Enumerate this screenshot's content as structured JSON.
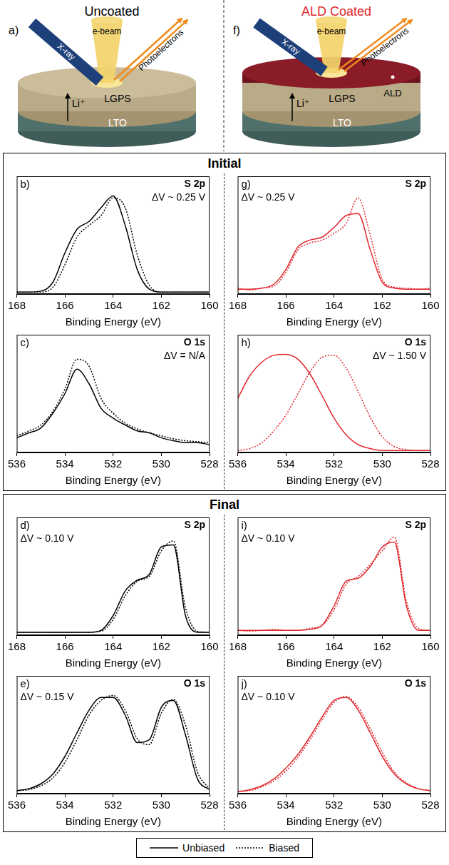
{
  "header": {
    "diagrams": [
      {
        "panel": "a)",
        "title": "Uncoated",
        "beam_labels": [
          "X-ray",
          "e-beam",
          "Photoelectrons"
        ],
        "layers": [
          "LGPS",
          "LTO"
        ],
        "ion": "Li⁺"
      },
      {
        "panel": "f)",
        "title": "ALD Coated",
        "beam_labels": [
          "X-ray",
          "e-beam",
          "Photoelectrons"
        ],
        "coating": "ALD",
        "layers": [
          "LGPS",
          "LTO"
        ],
        "ion": "Li⁺"
      }
    ]
  },
  "sections": [
    "Initial",
    "Final"
  ],
  "chart_data": [
    {
      "type": "line",
      "panel": "b)",
      "annotations": [
        "S 2p",
        "ΔV ~ 0.25 V"
      ],
      "x_label": "Binding Energy (eV)",
      "x": [
        168,
        167.5,
        167,
        166.5,
        166,
        165.5,
        165,
        164.5,
        164,
        163.5,
        163,
        162.5,
        162,
        161.5,
        161,
        160.5,
        160
      ],
      "xlim": [
        168,
        160
      ],
      "xticks": [
        168,
        166,
        164,
        162,
        160
      ],
      "ylim": [
        0,
        1.2
      ],
      "grid": false,
      "tick_labels": "x",
      "series": [
        {
          "name": "Unbiased",
          "color": "#000000",
          "line_style": "solid",
          "values": [
            0.02,
            0.02,
            0.03,
            0.12,
            0.42,
            0.66,
            0.74,
            0.88,
            1.0,
            0.7,
            0.25,
            0.05,
            0.02,
            0.02,
            0.02,
            0.02,
            0.02
          ]
        },
        {
          "name": "Biased",
          "color": "#000000",
          "line_style": "dotted",
          "values": [
            0.02,
            0.02,
            0.02,
            0.07,
            0.3,
            0.58,
            0.7,
            0.8,
            0.98,
            0.88,
            0.4,
            0.09,
            0.02,
            0.02,
            0.02,
            0.02,
            0.02
          ]
        }
      ]
    },
    {
      "type": "line",
      "panel": "c)",
      "annotations": [
        "O 1s",
        "ΔV = N/A"
      ],
      "x_label": "Binding Energy (eV)",
      "x": [
        536,
        535.5,
        535,
        534.5,
        534,
        533.5,
        533,
        532.5,
        532,
        531.5,
        531,
        530.5,
        530,
        529.5,
        529,
        528.5,
        528
      ],
      "xlim": [
        536,
        528
      ],
      "xticks": [
        536,
        534,
        532,
        530,
        528
      ],
      "ylim": [
        0,
        1.2
      ],
      "grid": false,
      "tick_labels": "x",
      "series": [
        {
          "name": "Unbiased",
          "color": "#000000",
          "line_style": "solid",
          "values": [
            0.15,
            0.2,
            0.25,
            0.4,
            0.6,
            0.85,
            0.7,
            0.45,
            0.35,
            0.28,
            0.22,
            0.2,
            0.15,
            0.12,
            0.1,
            0.1,
            0.08
          ]
        },
        {
          "name": "Biased",
          "color": "#000000",
          "line_style": "dotted",
          "values": [
            0.17,
            0.22,
            0.28,
            0.42,
            0.65,
            0.95,
            0.88,
            0.55,
            0.4,
            0.3,
            0.24,
            0.2,
            0.17,
            0.14,
            0.12,
            0.11,
            0.1
          ]
        }
      ]
    },
    {
      "type": "line",
      "panel": "d)",
      "annotations": [
        "S 2p",
        "ΔV ~ 0.10 V"
      ],
      "x_label": "Binding Energy (eV)",
      "x": [
        168,
        167.5,
        167,
        166.5,
        166,
        165.5,
        165,
        164.5,
        164,
        163.5,
        163,
        162.5,
        162,
        161.5,
        161,
        160.5,
        160
      ],
      "xlim": [
        168,
        160
      ],
      "xticks": [
        168,
        166,
        164,
        162,
        160
      ],
      "ylim": [
        0,
        1.2
      ],
      "grid": false,
      "tick_labels": "x",
      "series": [
        {
          "name": "Unbiased",
          "color": "#000000",
          "line_style": "solid",
          "values": [
            0.03,
            0.03,
            0.03,
            0.03,
            0.03,
            0.03,
            0.03,
            0.05,
            0.2,
            0.45,
            0.56,
            0.62,
            0.9,
            0.92,
            0.2,
            0.03,
            0.03
          ]
        },
        {
          "name": "Biased",
          "color": "#000000",
          "line_style": "dotted",
          "values": [
            0.03,
            0.03,
            0.03,
            0.03,
            0.03,
            0.03,
            0.03,
            0.04,
            0.16,
            0.4,
            0.55,
            0.6,
            0.86,
            0.96,
            0.28,
            0.04,
            0.03
          ]
        }
      ]
    },
    {
      "type": "line",
      "panel": "e)",
      "annotations": [
        "O 1s",
        "ΔV ~ 0.15 V"
      ],
      "x_label": "Binding Energy (eV)",
      "x": [
        536,
        535.5,
        535,
        534.5,
        534,
        533.5,
        533,
        532.5,
        532,
        531.5,
        531,
        530.5,
        530,
        529.5,
        529,
        528.5,
        528
      ],
      "xlim": [
        536,
        528
      ],
      "xticks": [
        536,
        534,
        532,
        530,
        528
      ],
      "ylim": [
        0,
        1.2
      ],
      "grid": false,
      "tick_labels": "x",
      "series": [
        {
          "name": "Unbiased",
          "color": "#000000",
          "line_style": "solid",
          "values": [
            0.03,
            0.05,
            0.1,
            0.2,
            0.38,
            0.62,
            0.85,
            0.98,
            0.98,
            0.8,
            0.52,
            0.55,
            0.88,
            0.95,
            0.6,
            0.15,
            0.04
          ]
        },
        {
          "name": "Biased",
          "color": "#000000",
          "line_style": "dotted",
          "values": [
            0.03,
            0.04,
            0.08,
            0.16,
            0.32,
            0.55,
            0.8,
            0.95,
            1.0,
            0.85,
            0.56,
            0.5,
            0.82,
            0.96,
            0.7,
            0.22,
            0.05
          ]
        }
      ]
    },
    {
      "type": "line",
      "panel": "g)",
      "annotations": [
        "S 2p",
        "ΔV ~ 0.25 V"
      ],
      "x_label": "Binding Energy (eV)",
      "x": [
        168,
        167.5,
        167,
        166.5,
        166,
        165.5,
        165,
        164.5,
        164,
        163.5,
        163,
        162.5,
        162,
        161.5,
        161,
        160.5,
        160
      ],
      "xlim": [
        168,
        160
      ],
      "xticks": [
        168,
        166,
        164,
        162,
        160
      ],
      "ylim": [
        0,
        1.2
      ],
      "grid": false,
      "tick_labels": "x",
      "series": [
        {
          "name": "Unbiased",
          "color": "#e0282e",
          "line_style": "solid",
          "values": [
            0.05,
            0.05,
            0.06,
            0.1,
            0.25,
            0.48,
            0.55,
            0.58,
            0.68,
            0.8,
            0.82,
            0.45,
            0.12,
            0.06,
            0.05,
            0.05,
            0.05
          ]
        },
        {
          "name": "Biased",
          "color": "#e0282e",
          "line_style": "dotted",
          "values": [
            0.06,
            0.04,
            0.06,
            0.08,
            0.22,
            0.45,
            0.52,
            0.55,
            0.62,
            0.72,
            0.98,
            0.6,
            0.15,
            0.07,
            0.06,
            0.05,
            0.06
          ]
        }
      ]
    },
    {
      "type": "line",
      "panel": "h)",
      "annotations": [
        "O 1s",
        "ΔV ~ 1.50 V"
      ],
      "x_label": "Binding Energy (eV)",
      "x": [
        536,
        535.5,
        535,
        534.5,
        534,
        533.5,
        533,
        532.5,
        532,
        531.5,
        531,
        530.5,
        530,
        529.5,
        529,
        528.5,
        528
      ],
      "xlim": [
        536,
        528
      ],
      "xticks": [
        536,
        534,
        532,
        530,
        528
      ],
      "ylim": [
        0,
        1.2
      ],
      "grid": false,
      "tick_labels": "x",
      "series": [
        {
          "name": "Unbiased",
          "color": "#e0282e",
          "line_style": "solid",
          "values": [
            0.55,
            0.78,
            0.92,
            0.99,
            1.0,
            0.95,
            0.8,
            0.58,
            0.35,
            0.18,
            0.08,
            0.04,
            0.02,
            0.02,
            0.02,
            0.02,
            0.02
          ]
        },
        {
          "name": "Biased",
          "color": "#e0282e",
          "line_style": "dotted",
          "values": [
            0.02,
            0.04,
            0.1,
            0.22,
            0.38,
            0.6,
            0.82,
            0.97,
            0.99,
            0.86,
            0.62,
            0.36,
            0.16,
            0.06,
            0.03,
            0.02,
            0.02
          ]
        }
      ]
    },
    {
      "type": "line",
      "panel": "i)",
      "annotations": [
        "S 2p",
        "ΔV ~ 0.10 V"
      ],
      "x_label": "Binding Energy (eV)",
      "x": [
        168,
        167.5,
        167,
        166.5,
        166,
        165.5,
        165,
        164.5,
        164,
        163.5,
        163,
        162.5,
        162,
        161.5,
        161,
        160.5,
        160
      ],
      "xlim": [
        168,
        160
      ],
      "xticks": [
        168,
        166,
        164,
        162,
        160
      ],
      "ylim": [
        0,
        1.2
      ],
      "grid": false,
      "tick_labels": "x",
      "series": [
        {
          "name": "Unbiased",
          "color": "#e0282e",
          "line_style": "solid",
          "values": [
            0.05,
            0.05,
            0.05,
            0.05,
            0.05,
            0.05,
            0.06,
            0.1,
            0.3,
            0.55,
            0.58,
            0.7,
            0.9,
            0.95,
            0.3,
            0.05,
            0.05
          ]
        },
        {
          "name": "Biased",
          "color": "#e0282e",
          "line_style": "dotted",
          "values": [
            0.05,
            0.04,
            0.05,
            0.06,
            0.05,
            0.05,
            0.07,
            0.1,
            0.26,
            0.52,
            0.6,
            0.72,
            0.86,
            1.0,
            0.35,
            0.07,
            0.05
          ]
        }
      ]
    },
    {
      "type": "line",
      "panel": "j)",
      "annotations": [
        "O 1s",
        "ΔV ~ 0.10 V"
      ],
      "x_label": "Binding Energy (eV)",
      "x": [
        536,
        535.5,
        535,
        534.5,
        534,
        533.5,
        533,
        532.5,
        532,
        531.5,
        531,
        530.5,
        530,
        529.5,
        529,
        528.5,
        528
      ],
      "xlim": [
        536,
        528
      ],
      "xticks": [
        536,
        534,
        532,
        530,
        528
      ],
      "ylim": [
        0,
        1.2
      ],
      "grid": false,
      "tick_labels": "x",
      "series": [
        {
          "name": "Unbiased",
          "color": "#e0282e",
          "line_style": "solid",
          "values": [
            0.02,
            0.04,
            0.08,
            0.15,
            0.26,
            0.4,
            0.58,
            0.78,
            0.95,
            0.98,
            0.85,
            0.62,
            0.38,
            0.2,
            0.1,
            0.05,
            0.03
          ]
        },
        {
          "name": "Biased",
          "color": "#e0282e",
          "line_style": "dotted",
          "values": [
            0.02,
            0.03,
            0.07,
            0.13,
            0.23,
            0.37,
            0.55,
            0.75,
            0.93,
            0.99,
            0.88,
            0.66,
            0.42,
            0.22,
            0.11,
            0.05,
            0.03
          ]
        }
      ]
    }
  ]
}
